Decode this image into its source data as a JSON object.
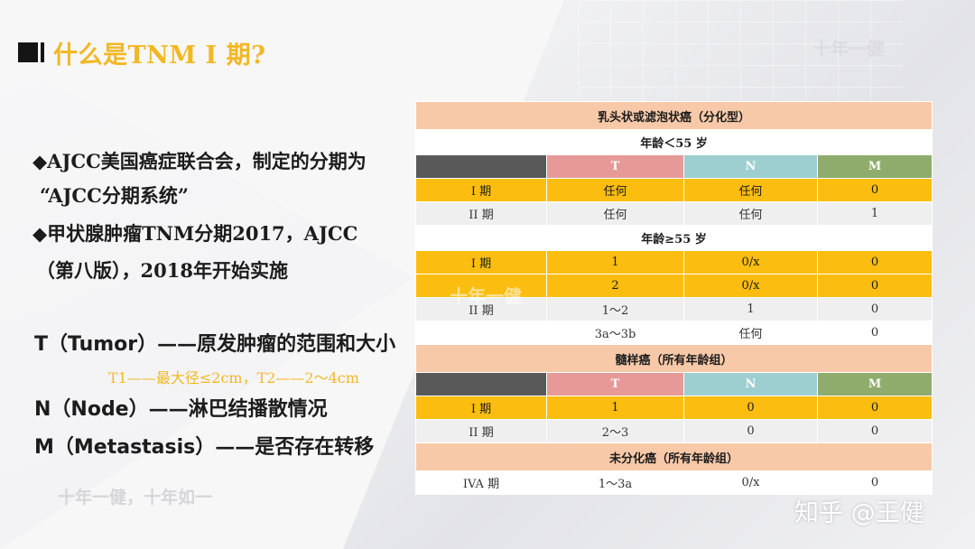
{
  "title": "什么是TNM I 期?",
  "watermarks": {
    "top": "十年一健",
    "mid": "十年一健",
    "bottom": "十年一健，十年如一",
    "zhihu": "知乎 @王健"
  },
  "bullets": [
    {
      "line1": "◆AJCC美国癌症联合会，制定的分期为",
      "line2": "“AJCC分期系统”"
    },
    {
      "line1": "◆甲状腺肿瘤TNM分期2017，AJCC",
      "line2": "（第八版），2018年开始实施"
    }
  ],
  "tnm": {
    "t_en": "T（Tumor）",
    "t_cn": "——原发肿瘤的范围和大小",
    "t_sub": "T1——最大径≤2cm，T2——2～4cm",
    "n_en": "N（Node）",
    "n_cn": "——淋巴结播散情况",
    "m_en": "M（Metastasis）",
    "m_cn": "——是否存在转移"
  },
  "table": {
    "sec1": "乳头状或滤泡状癌（分化型）",
    "age1": "年龄＜55 岁",
    "head": {
      "t": "T",
      "n": "N",
      "m": "M"
    },
    "g1": [
      {
        "stage": "I 期",
        "t": "任何",
        "n": "任何",
        "m": "0"
      },
      {
        "stage": "II 期",
        "t": "任何",
        "n": "任何",
        "m": "1"
      }
    ],
    "age2": "年龄≥55 岁",
    "g2": [
      {
        "stage": "I 期",
        "t": "1",
        "n": "0/x",
        "m": "0"
      },
      {
        "stage": "",
        "t": "2",
        "n": "0/x",
        "m": "0"
      },
      {
        "stage": "II 期",
        "t": "1～2",
        "n": "1",
        "m": "0"
      },
      {
        "stage": "",
        "t": "3a～3b",
        "n": "任何",
        "m": "0"
      }
    ],
    "sec2": "髓样癌（所有年龄组）",
    "g3": [
      {
        "stage": "I 期",
        "t": "1",
        "n": "0",
        "m": "0"
      },
      {
        "stage": "II 期",
        "t": "2～3",
        "n": "0",
        "m": "0"
      }
    ],
    "sec3": "未分化癌（所有年龄组）",
    "g4": [
      {
        "stage": "IVA 期",
        "t": "1～3a",
        "n": "0/x",
        "m": "0"
      }
    ]
  }
}
